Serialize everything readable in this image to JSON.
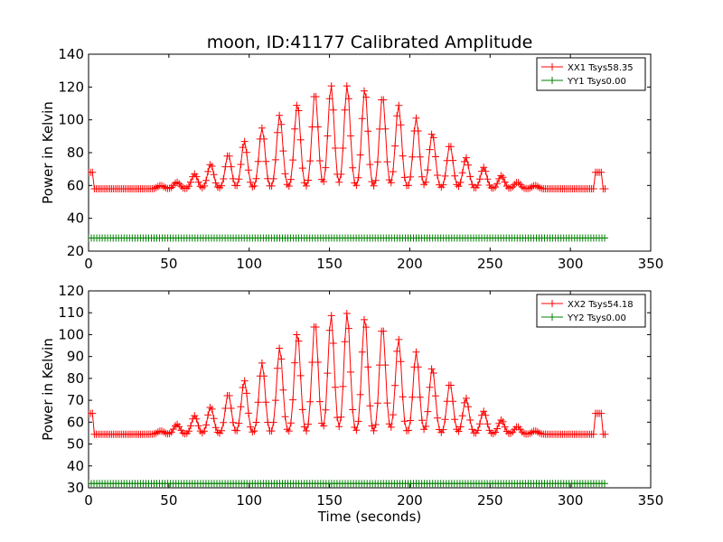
{
  "chart_data": [
    {
      "type": "line",
      "title": "moon, ID:41177 Calibrated Amplitude",
      "xlabel": "",
      "ylabel": "Power in Kelvin",
      "xlim": [
        0,
        350
      ],
      "ylim": [
        20,
        140
      ],
      "xticks": [
        0,
        50,
        100,
        150,
        200,
        250,
        300,
        350
      ],
      "yticks": [
        20,
        40,
        60,
        80,
        100,
        120,
        140
      ],
      "legend_position": "top-right",
      "grid": false,
      "baseline": 58,
      "edge_value": 68,
      "peak_times": [
        45,
        55,
        66,
        76,
        87,
        97,
        108,
        119,
        130,
        141,
        151,
        161,
        172,
        183,
        193,
        204,
        214,
        225,
        235,
        246,
        257,
        267,
        278
      ],
      "peak_values": [
        60,
        62,
        67,
        73,
        79,
        87,
        95,
        103,
        110,
        117,
        121,
        121,
        119,
        115,
        109,
        101,
        92,
        85,
        77,
        71,
        66,
        62,
        60
      ],
      "series": [
        {
          "name": "XX1 Tsys58.35",
          "color": "#ff0000",
          "kind": "peaks"
        },
        {
          "name": "YY1 Tsys0.00",
          "color": "#008000",
          "kind": "flat",
          "value": 28
        }
      ]
    },
    {
      "type": "line",
      "title": "",
      "xlabel": "Time (seconds)",
      "ylabel": "Power in Kelvin",
      "xlim": [
        0,
        350
      ],
      "ylim": [
        30,
        120
      ],
      "xticks": [
        0,
        50,
        100,
        150,
        200,
        250,
        300,
        350
      ],
      "yticks": [
        30,
        40,
        50,
        60,
        70,
        80,
        90,
        100,
        110,
        120
      ],
      "legend_position": "top-right",
      "grid": false,
      "baseline": 54.5,
      "edge_value": 64,
      "peak_times": [
        45,
        55,
        66,
        76,
        87,
        97,
        108,
        119,
        130,
        141,
        151,
        161,
        172,
        183,
        193,
        204,
        214,
        225,
        235,
        246,
        257,
        267,
        278
      ],
      "peak_values": [
        56,
        59,
        63,
        67,
        73,
        79,
        87,
        94,
        101,
        106,
        109,
        110,
        108,
        104,
        98,
        92,
        85,
        78,
        71,
        65,
        61,
        58,
        56
      ],
      "series": [
        {
          "name": "XX2 Tsys54.18",
          "color": "#ff0000",
          "kind": "peaks"
        },
        {
          "name": "YY2 Tsys0.00",
          "color": "#008000",
          "kind": "flat",
          "value": 32
        }
      ]
    }
  ]
}
